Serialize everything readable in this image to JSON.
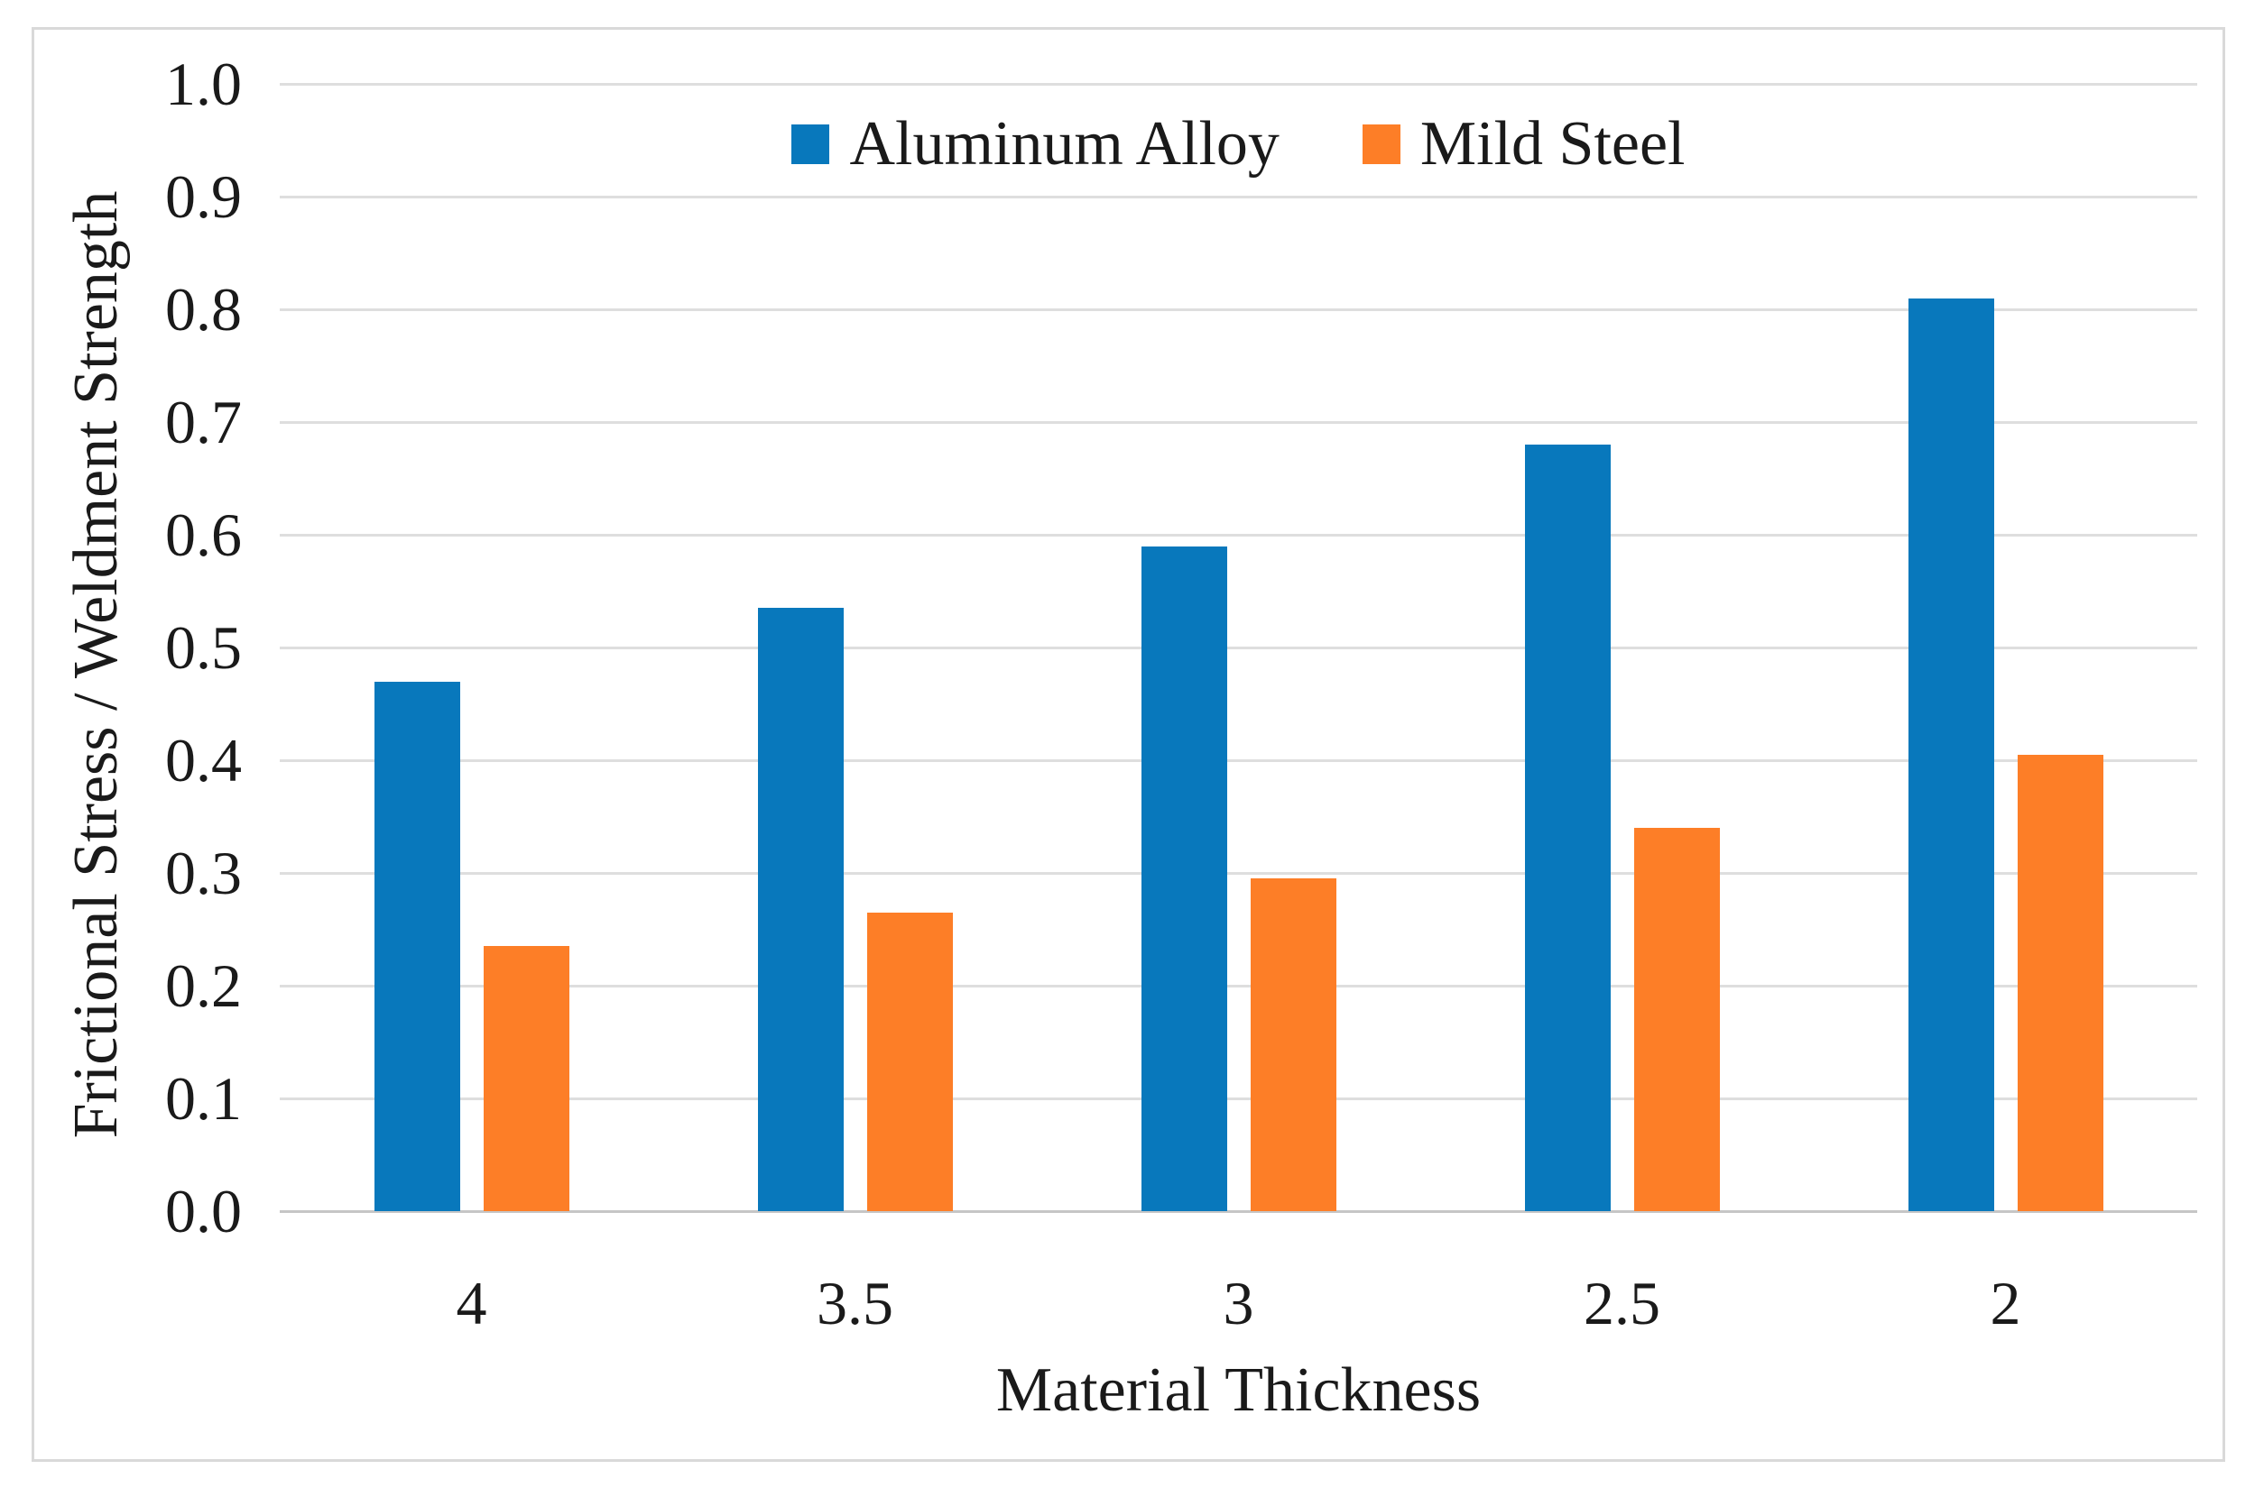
{
  "figure": {
    "background_color": "#ffffff",
    "frame_border_color": "#d9d9d9",
    "gridline_color": "#dedede",
    "axis_line_color": "#c6c6c6",
    "text_color": "#1a1a1a"
  },
  "chart_data": {
    "type": "bar",
    "title": "",
    "xlabel": "Material Thickness",
    "ylabel": "Frictional Stress / Weldment Strength",
    "categories": [
      "4",
      "3.5",
      "3",
      "2.5",
      "2"
    ],
    "series": [
      {
        "name": "Aluminum Alloy",
        "color": "#0878bc",
        "values": [
          0.47,
          0.535,
          0.59,
          0.68,
          0.81
        ]
      },
      {
        "name": "Mild Steel",
        "color": "#fd7e27",
        "values": [
          0.235,
          0.265,
          0.295,
          0.34,
          0.405
        ]
      }
    ],
    "ylim": [
      0.0,
      1.0
    ],
    "ytick_labels": [
      "0.0",
      "0.1",
      "0.2",
      "0.3",
      "0.4",
      "0.5",
      "0.6",
      "0.7",
      "0.8",
      "0.9",
      "1.0"
    ],
    "grid": "horizontal",
    "legend_position": "top-center"
  }
}
